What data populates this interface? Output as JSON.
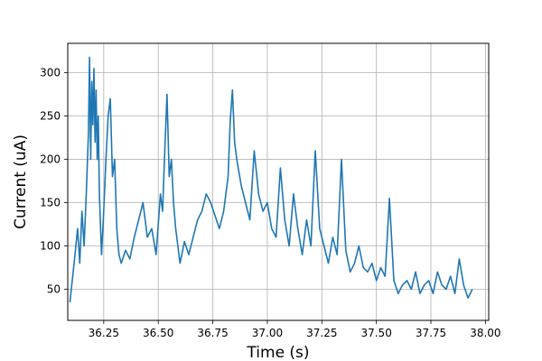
{
  "chart_data": {
    "type": "line",
    "title": "",
    "xlabel": "Time (s)",
    "ylabel": "Current (uA)",
    "xlim": [
      36.085,
      38.015
    ],
    "ylim": [
      14,
      334
    ],
    "xticks": [
      36.25,
      36.5,
      36.75,
      37.0,
      37.25,
      37.5,
      37.75,
      38.0
    ],
    "xtick_labels": [
      "36.25",
      "36.50",
      "36.75",
      "37.00",
      "37.25",
      "37.50",
      "37.75",
      "38.00"
    ],
    "yticks": [
      50,
      100,
      150,
      200,
      250,
      300
    ],
    "ytick_labels": [
      "50",
      "100",
      "150",
      "200",
      "250",
      "300"
    ],
    "grid": true,
    "line_color": "#1f77b4",
    "series": [
      {
        "values_description_free": true,
        "x": [
          36.095,
          36.11,
          36.12,
          36.13,
          36.14,
          36.15,
          36.16,
          36.17,
          36.18,
          36.185,
          36.19,
          36.195,
          36.2,
          36.205,
          36.21,
          36.215,
          36.22,
          36.225,
          36.23,
          36.24,
          36.25,
          36.26,
          36.27,
          36.28,
          36.29,
          36.3,
          36.31,
          36.32,
          36.33,
          36.35,
          36.37,
          36.39,
          36.41,
          36.43,
          36.45,
          36.47,
          36.49,
          36.51,
          36.52,
          36.53,
          36.54,
          36.55,
          36.56,
          36.57,
          36.58,
          36.6,
          36.62,
          36.64,
          36.66,
          36.68,
          36.7,
          36.72,
          36.74,
          36.76,
          36.78,
          36.8,
          36.82,
          36.83,
          36.84,
          36.85,
          36.86,
          36.88,
          36.9,
          36.92,
          36.94,
          36.96,
          36.98,
          37.0,
          37.02,
          37.04,
          37.06,
          37.08,
          37.1,
          37.12,
          37.14,
          37.16,
          37.18,
          37.2,
          37.22,
          37.24,
          37.26,
          37.28,
          37.3,
          37.32,
          37.34,
          37.36,
          37.38,
          37.4,
          37.42,
          37.44,
          37.46,
          37.48,
          37.5,
          37.52,
          37.54,
          37.56,
          37.58,
          37.6,
          37.62,
          37.64,
          37.66,
          37.68,
          37.7,
          37.72,
          37.74,
          37.76,
          37.78,
          37.8,
          37.82,
          37.84,
          37.86,
          37.88,
          37.9,
          37.92,
          37.94
        ],
        "y": [
          35,
          70,
          95,
          120,
          80,
          140,
          100,
          160,
          230,
          318,
          200,
          290,
          240,
          305,
          220,
          280,
          200,
          250,
          160,
          90,
          140,
          200,
          250,
          270,
          180,
          200,
          120,
          90,
          80,
          95,
          85,
          110,
          130,
          150,
          110,
          120,
          90,
          160,
          140,
          210,
          275,
          180,
          200,
          150,
          120,
          80,
          105,
          90,
          110,
          130,
          140,
          160,
          150,
          135,
          120,
          140,
          180,
          245,
          280,
          220,
          200,
          170,
          150,
          130,
          210,
          160,
          140,
          150,
          120,
          110,
          190,
          130,
          100,
          160,
          120,
          90,
          130,
          100,
          210,
          120,
          100,
          80,
          110,
          90,
          200,
          95,
          70,
          80,
          100,
          75,
          70,
          80,
          60,
          75,
          65,
          155,
          60,
          45,
          55,
          60,
          50,
          70,
          45,
          55,
          60,
          45,
          70,
          55,
          50,
          65,
          45,
          85,
          55,
          40,
          50
        ]
      }
    ]
  }
}
